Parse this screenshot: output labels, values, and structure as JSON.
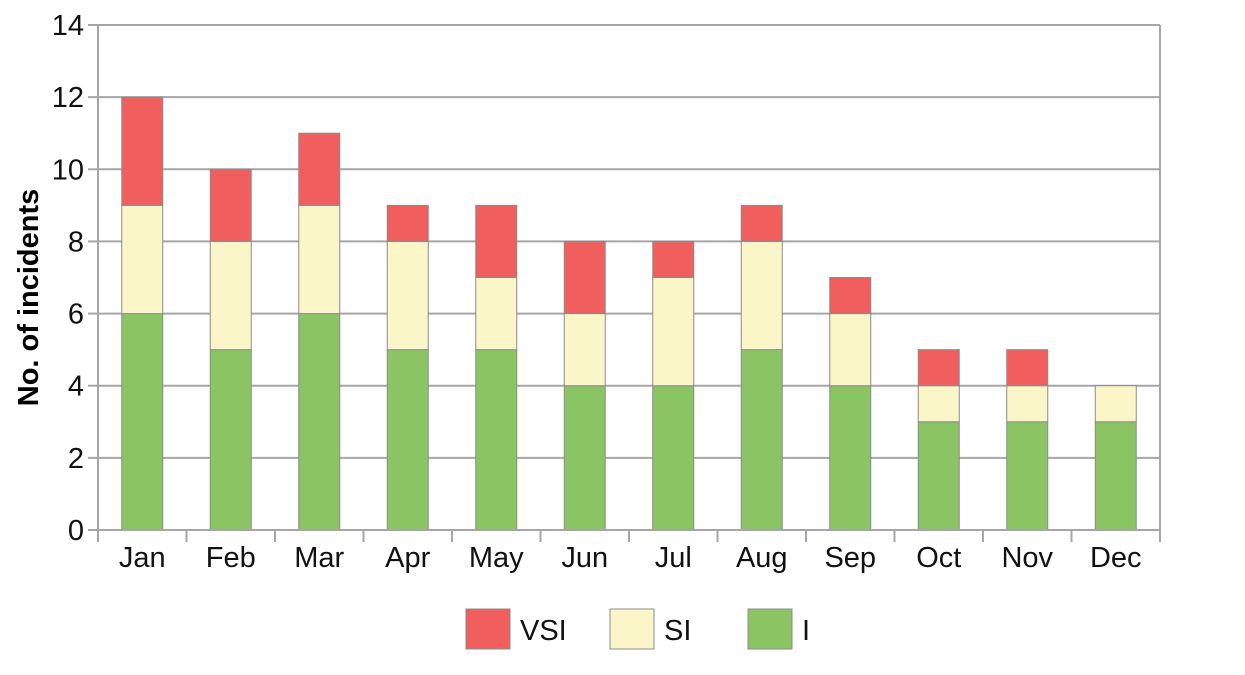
{
  "chart_data": {
    "type": "bar",
    "stacked": true,
    "categories": [
      "Jan",
      "Feb",
      "Mar",
      "Apr",
      "May",
      "Jun",
      "Jul",
      "Aug",
      "Sep",
      "Oct",
      "Nov",
      "Dec"
    ],
    "series": [
      {
        "name": "I",
        "color": "#8bc462",
        "values": [
          6,
          5,
          6,
          5,
          5,
          4,
          4,
          5,
          4,
          3,
          3,
          3
        ]
      },
      {
        "name": "SI",
        "color": "#faf6c8",
        "values": [
          3,
          3,
          3,
          3,
          2,
          2,
          3,
          3,
          2,
          1,
          1,
          1
        ]
      },
      {
        "name": "VSI",
        "color": "#f15e5e",
        "values": [
          3,
          2,
          2,
          1,
          2,
          2,
          1,
          1,
          1,
          1,
          1,
          0
        ]
      }
    ],
    "legend_order": [
      "VSI",
      "SI",
      "I"
    ],
    "legend_position": "bottom",
    "ylabel": "No. of incidents",
    "xlabel": "",
    "ylim": [
      0,
      14
    ],
    "yticks": [
      0,
      2,
      4,
      6,
      8,
      10,
      12,
      14
    ],
    "grid": true
  }
}
